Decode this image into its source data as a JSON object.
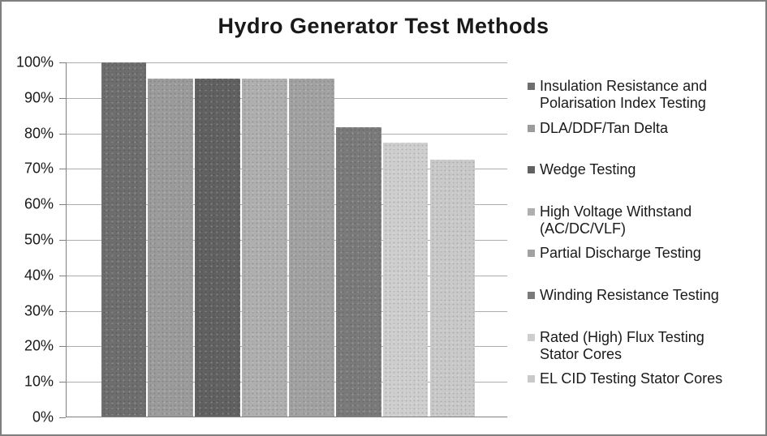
{
  "chart_data": {
    "type": "bar",
    "title": "Hydro Generator Test Methods",
    "categories": [
      "Insulation Resistance and Polarisation Index Testing",
      "DLA/DDF/Tan Delta",
      "Wedge Testing",
      "High Voltage Withstand (AC/DC/VLF)",
      "Partial Discharge Testing",
      "Winding Resistance Testing",
      "Rated (High) Flux Testing Stator Cores",
      "EL CID Testing Stator Cores"
    ],
    "values": [
      100,
      95.5,
      95.5,
      95.5,
      95.5,
      81.8,
      77.3,
      72.7
    ],
    "unit": "%",
    "ylim": [
      0,
      100
    ],
    "ytick_step": 10,
    "ytick_labels": [
      "0%",
      "10%",
      "20%",
      "30%",
      "40%",
      "50%",
      "60%",
      "70%",
      "80%",
      "90%",
      "100%"
    ],
    "xlabel": "",
    "ylabel": "",
    "grid": true,
    "legend_position": "right",
    "bar_colors": [
      "#6e6e6e",
      "#9b9b9b",
      "#616161",
      "#afafaf",
      "#a2a2a2",
      "#7a7a7a",
      "#cecece",
      "#c9c9c9"
    ],
    "axis_color": "#808080",
    "gridline_color": "#adadad",
    "title_color": "#191919",
    "text_color": "#1a1a1a",
    "frame_border_color": "#7f7f7f",
    "background_color": "#ffffff"
  }
}
